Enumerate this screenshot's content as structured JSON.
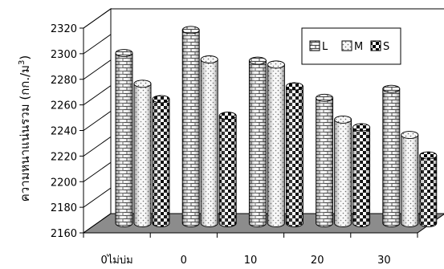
{
  "chart_data": {
    "type": "bar",
    "categories": [
      "0ไม่บ่ม",
      "0",
      "10",
      "20",
      "30"
    ],
    "series": [
      {
        "name": "L",
        "values": [
          2293,
          2311,
          2287,
          2258,
          2265
        ]
      },
      {
        "name": "M",
        "values": [
          2269,
          2288,
          2284,
          2241,
          2229
        ]
      },
      {
        "name": "S",
        "values": [
          2257,
          2244,
          2267,
          2235,
          2213
        ]
      }
    ],
    "ylabel": "ความหนาแน่นรวม (กก./ม³)",
    "ylim": [
      2160,
      2320
    ],
    "yticks": [
      2160,
      2180,
      2200,
      2220,
      2240,
      2260,
      2280,
      2300,
      2320
    ],
    "grid": false,
    "legend": "top-right"
  }
}
